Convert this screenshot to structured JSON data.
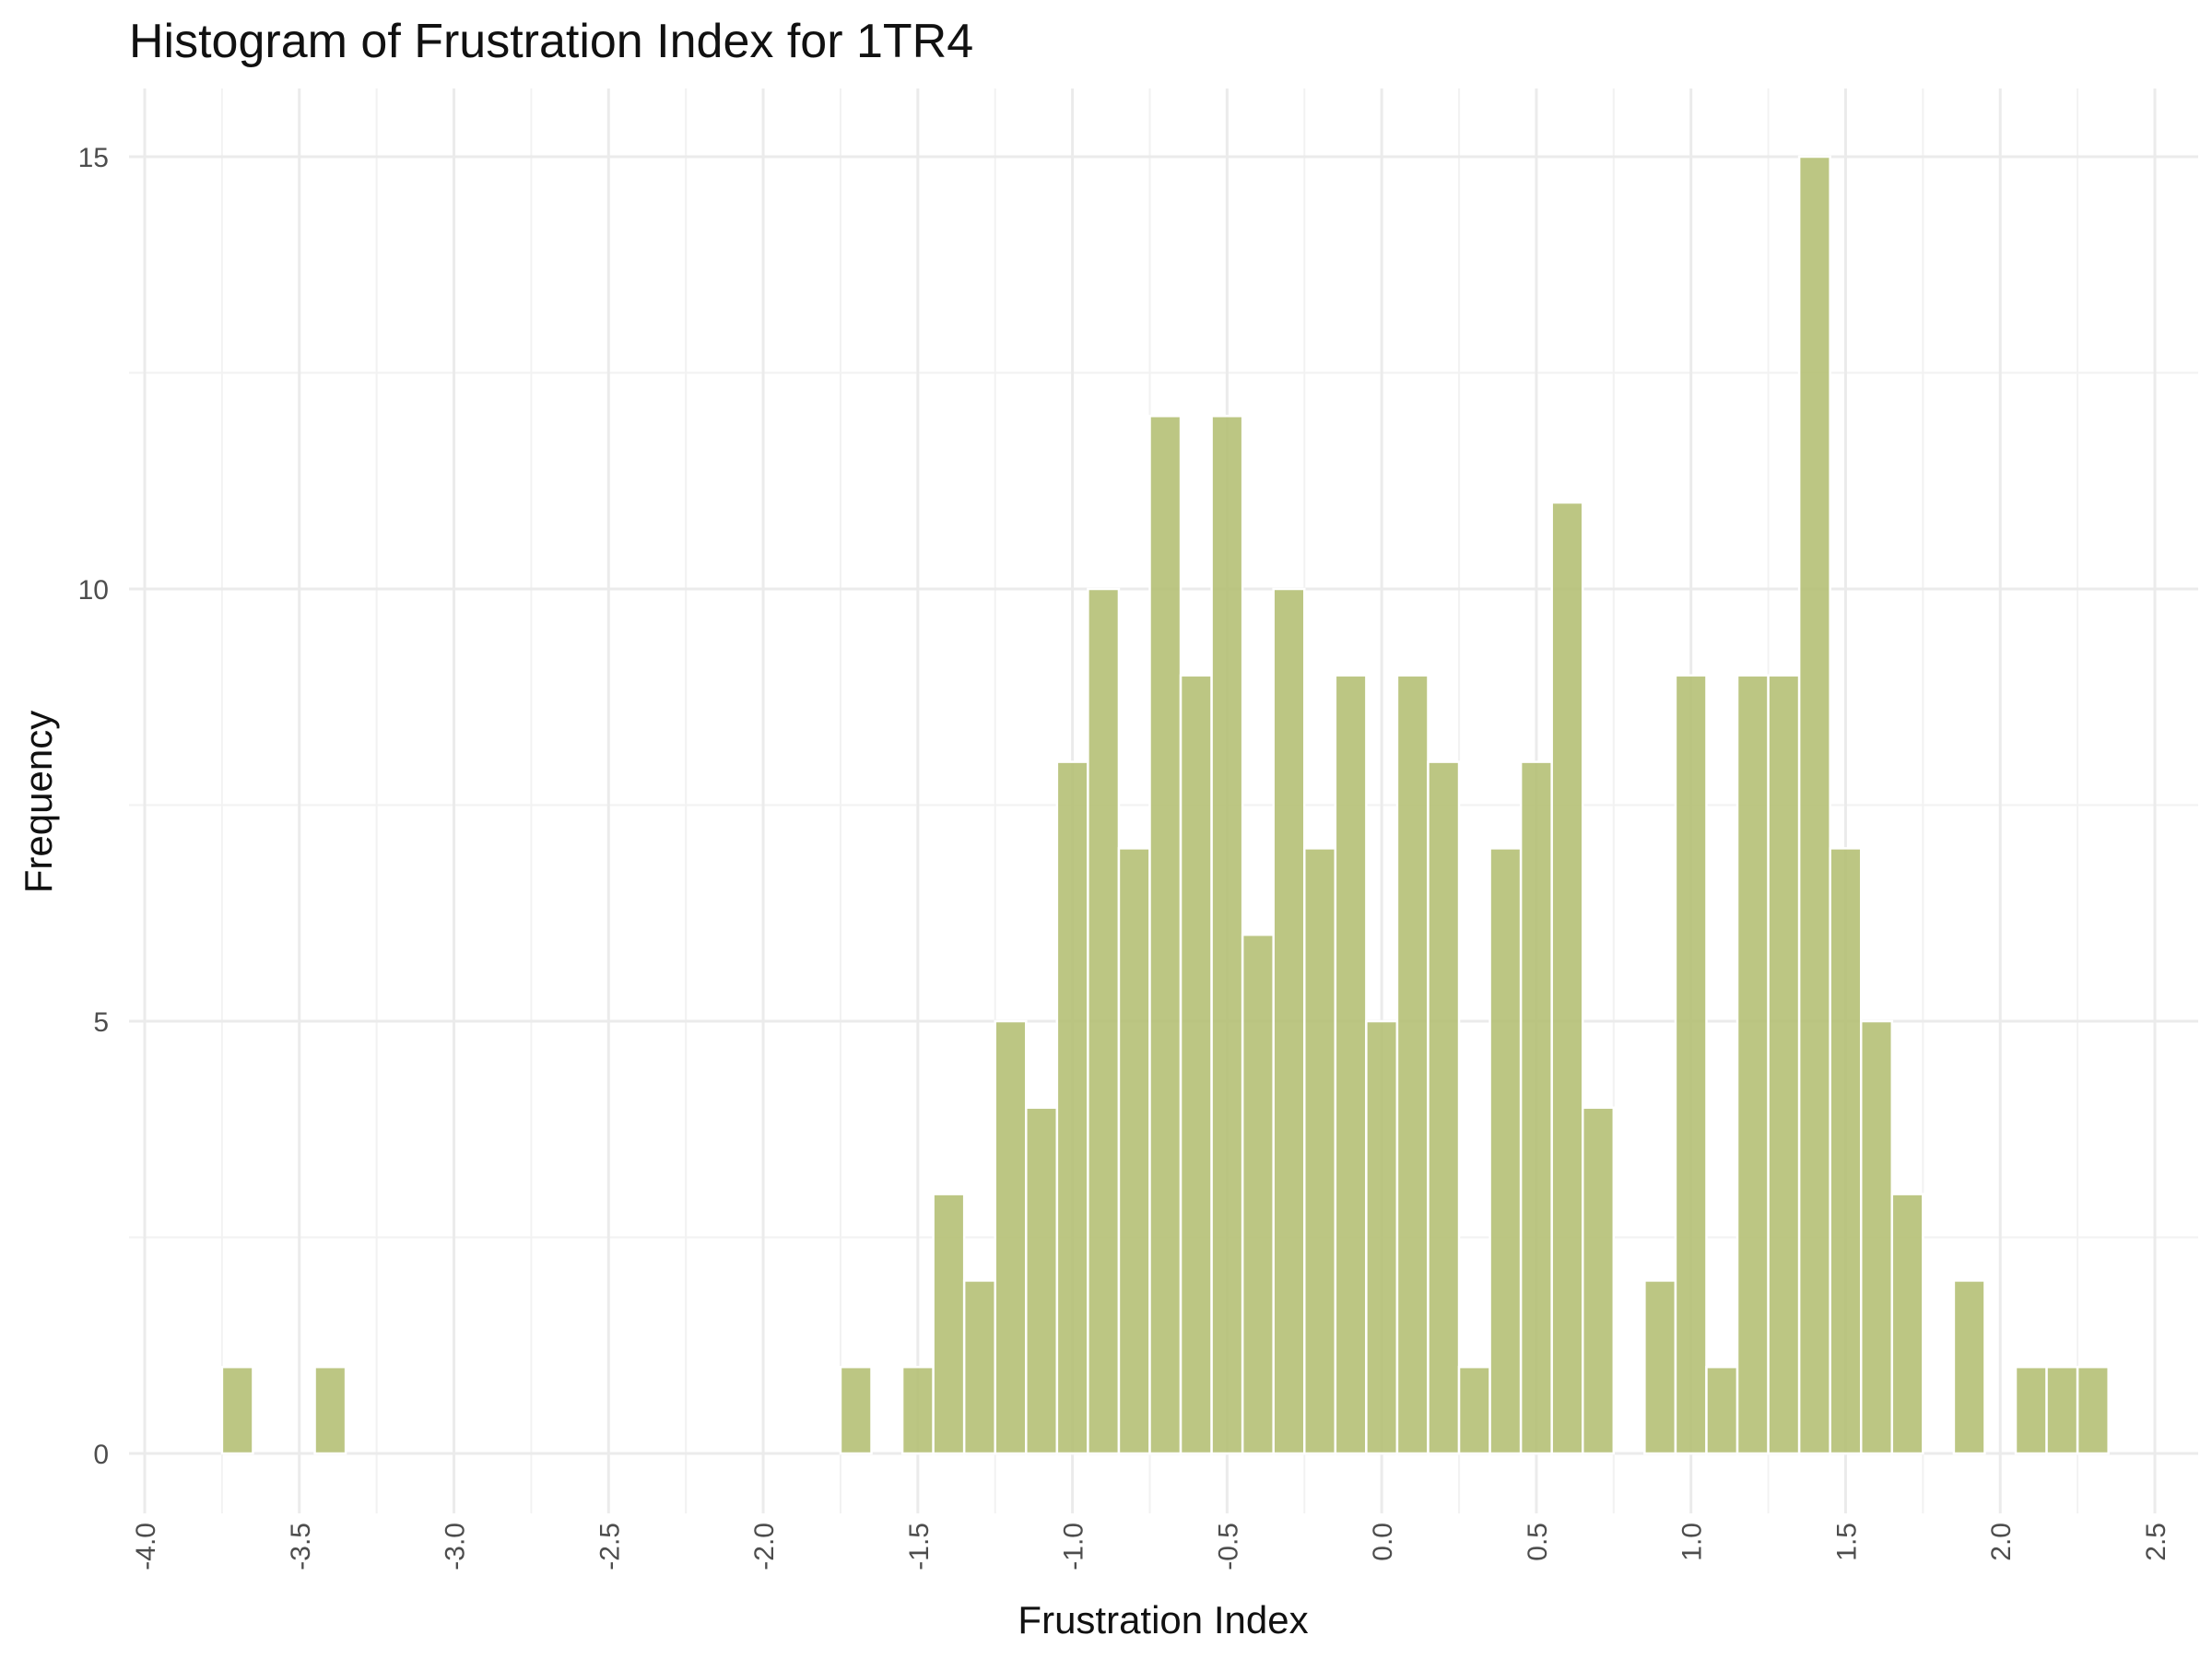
{
  "chart_data": {
    "type": "bar",
    "title": "Histogram of Frustration Index for 1TR4",
    "xlabel": "Frustration Index",
    "ylabel": "Frequency",
    "xlim": [
      -4.0,
      2.5
    ],
    "ylim": [
      0,
      15
    ],
    "x_ticks": [
      "-4.0",
      "-3.5",
      "-3.0",
      "-2.5",
      "-2.0",
      "-1.5",
      "-1.0",
      "-0.5",
      "0.0",
      "0.5",
      "1.0",
      "1.5",
      "2.0",
      "2.5"
    ],
    "y_ticks": [
      "0",
      "5",
      "10",
      "15"
    ],
    "bin_width": 0.1,
    "grid": true,
    "legend": "none",
    "bar_color": "#b5c076",
    "bins": [
      {
        "x": -3.7,
        "value": 1
      },
      {
        "x": -3.4,
        "value": 1
      },
      {
        "x": -1.7,
        "value": 1
      },
      {
        "x": -1.5,
        "value": 1
      },
      {
        "x": -1.4,
        "value": 3
      },
      {
        "x": -1.3,
        "value": 2
      },
      {
        "x": -1.2,
        "value": 5
      },
      {
        "x": -1.1,
        "value": 4
      },
      {
        "x": -1.0,
        "value": 8
      },
      {
        "x": -0.9,
        "value": 10
      },
      {
        "x": -0.8,
        "value": 7
      },
      {
        "x": -0.7,
        "value": 12
      },
      {
        "x": -0.6,
        "value": 9
      },
      {
        "x": -0.5,
        "value": 12
      },
      {
        "x": -0.4,
        "value": 6
      },
      {
        "x": -0.3,
        "value": 10
      },
      {
        "x": -0.2,
        "value": 7
      },
      {
        "x": -0.1,
        "value": 9
      },
      {
        "x": 0.0,
        "value": 5
      },
      {
        "x": 0.1,
        "value": 9
      },
      {
        "x": 0.2,
        "value": 8
      },
      {
        "x": 0.3,
        "value": 1
      },
      {
        "x": 0.4,
        "value": 7
      },
      {
        "x": 0.5,
        "value": 8
      },
      {
        "x": 0.6,
        "value": 11
      },
      {
        "x": 0.7,
        "value": 4
      },
      {
        "x": 0.9,
        "value": 2
      },
      {
        "x": 1.0,
        "value": 9
      },
      {
        "x": 1.1,
        "value": 1
      },
      {
        "x": 1.2,
        "value": 9
      },
      {
        "x": 1.3,
        "value": 9
      },
      {
        "x": 1.4,
        "value": 15
      },
      {
        "x": 1.5,
        "value": 7
      },
      {
        "x": 1.6,
        "value": 5
      },
      {
        "x": 1.7,
        "value": 3
      },
      {
        "x": 1.9,
        "value": 2
      },
      {
        "x": 2.1,
        "value": 1
      },
      {
        "x": 2.2,
        "value": 1
      },
      {
        "x": 2.3,
        "value": 1
      }
    ]
  }
}
